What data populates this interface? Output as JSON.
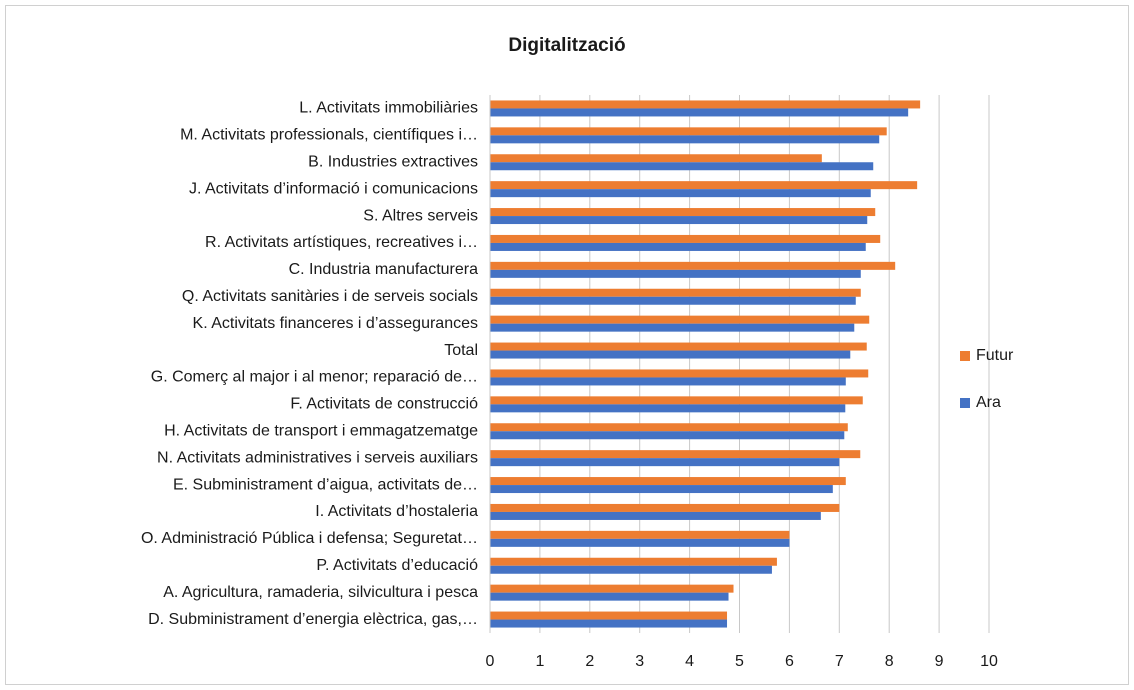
{
  "chart_data": {
    "type": "bar",
    "orientation": "horizontal",
    "title": "Digitalització",
    "categories": [
      "L. Activitats immobiliàries",
      "M. Activitats professionals, científiques i…",
      "B. Industries extractives",
      "J. Activitats d’informació i comunicacions",
      "S. Altres serveis",
      "R. Activitats artístiques, recreatives i…",
      "C. Industria manufacturera",
      "Q. Activitats sanitàries i de serveis socials",
      "K. Activitats financeres i d’assegurances",
      "Total",
      "G. Comerç al major i al menor; reparació de…",
      "F. Activitats de construcció",
      "H. Activitats de transport i emmagatzematge",
      "N. Activitats administratives i serveis auxiliars",
      "E. Subministrament d’aigua, activitats de…",
      "I. Activitats d’hostaleria",
      "O. Administració Pública i defensa; Seguretat…",
      "P. Activitats d’educació",
      "A. Agricultura, ramaderia, silvicultura i pesca",
      "D. Subministrament d’energia elèctrica, gas,…"
    ],
    "series": [
      {
        "name": "Futur",
        "color": "#ed7d31",
        "values": [
          8.62,
          7.95,
          6.65,
          8.56,
          7.72,
          7.82,
          8.12,
          7.43,
          7.6,
          7.55,
          7.58,
          7.47,
          7.17,
          7.42,
          7.13,
          7.0,
          6.0,
          5.75,
          4.88,
          4.75
        ]
      },
      {
        "name": "Ara",
        "color": "#4472c4",
        "values": [
          8.38,
          7.8,
          7.68,
          7.63,
          7.56,
          7.53,
          7.43,
          7.33,
          7.3,
          7.22,
          7.13,
          7.12,
          7.1,
          7.0,
          6.87,
          6.63,
          6.0,
          5.65,
          4.78,
          4.75
        ]
      }
    ],
    "xlim": [
      0,
      10
    ],
    "xticks": [
      0,
      1,
      2,
      3,
      4,
      5,
      6,
      7,
      8,
      9,
      10
    ],
    "grid": true,
    "legend": "right"
  }
}
